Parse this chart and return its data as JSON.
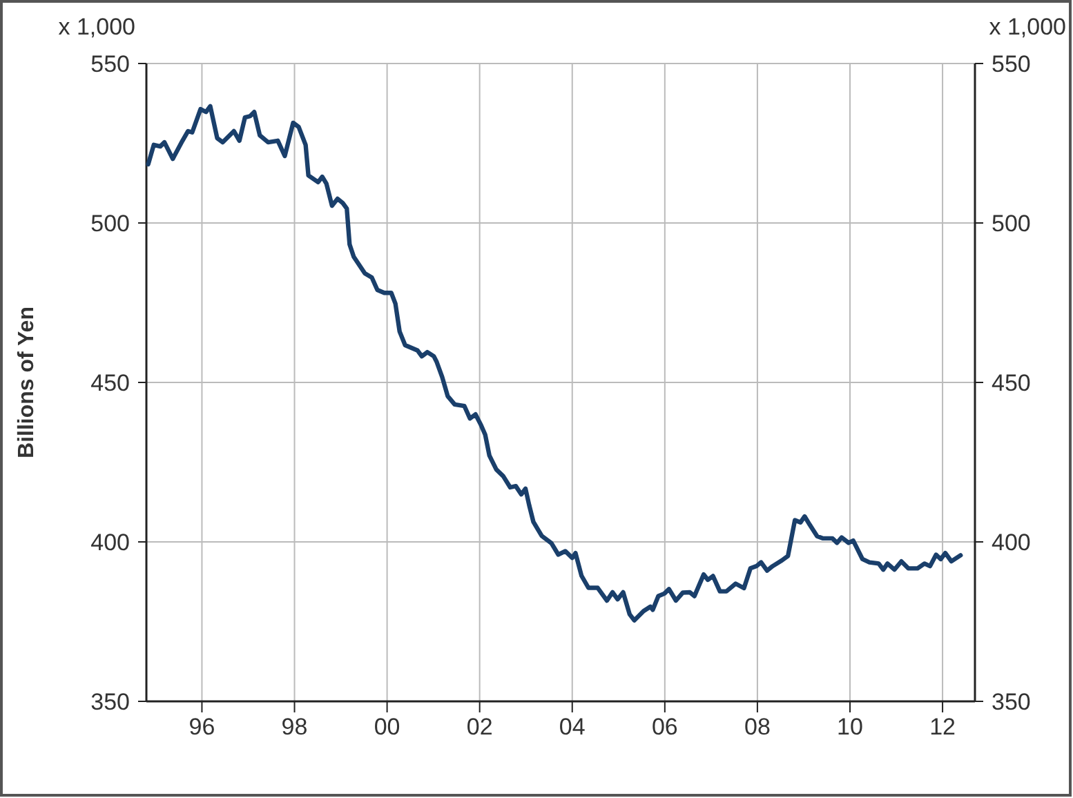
{
  "chart_data": {
    "type": "line",
    "ylabel": "Billions of Yen",
    "annotations": [
      "x 1,000",
      "x 1,000"
    ],
    "xlim": [
      1994.8,
      2012.7
    ],
    "xticks": [
      {
        "value": 1996,
        "label": "96"
      },
      {
        "value": 1998,
        "label": "98"
      },
      {
        "value": 2000,
        "label": "00"
      },
      {
        "value": 2002,
        "label": "02"
      },
      {
        "value": 2004,
        "label": "04"
      },
      {
        "value": 2006,
        "label": "06"
      },
      {
        "value": 2008,
        "label": "08"
      },
      {
        "value": 2010,
        "label": "10"
      },
      {
        "value": 2012,
        "label": "12"
      }
    ],
    "ylim": [
      350,
      550
    ],
    "yticks": [
      350,
      400,
      450,
      500,
      550
    ],
    "y2lim": [
      350,
      550
    ],
    "y2ticks": [
      350,
      400,
      450,
      500,
      550
    ],
    "grid": true,
    "marker": "none",
    "line_style": "solid",
    "series": [
      {
        "color": "#1a3f6b",
        "x": [
          1994.84,
          1994.96,
          1995.1,
          1995.19,
          1995.37,
          1995.58,
          1995.7,
          1995.79,
          1995.97,
          1996.09,
          1996.18,
          1996.33,
          1996.45,
          1996.69,
          1996.81,
          1996.93,
          1997.04,
          1997.13,
          1997.25,
          1997.43,
          1997.64,
          1997.79,
          1997.97,
          1998.09,
          1998.24,
          1998.3,
          1998.51,
          1998.6,
          1998.69,
          1998.81,
          1998.93,
          1999.04,
          1999.13,
          1999.19,
          1999.28,
          1999.52,
          1999.67,
          1999.79,
          1999.94,
          2000.09,
          2000.18,
          2000.27,
          2000.39,
          2000.66,
          2000.75,
          2000.87,
          2001.01,
          2001.07,
          2001.19,
          2001.31,
          2001.46,
          2001.67,
          2001.79,
          2001.91,
          2002.03,
          2002.12,
          2002.21,
          2002.36,
          2002.51,
          2002.66,
          2002.78,
          2002.9,
          2002.99,
          2003.07,
          2003.16,
          2003.34,
          2003.55,
          2003.7,
          2003.85,
          2004.0,
          2004.07,
          2004.2,
          2004.35,
          2004.55,
          2004.75,
          2004.87,
          2004.98,
          2005.1,
          2005.24,
          2005.34,
          2005.54,
          2005.69,
          2005.74,
          2005.86,
          2005.99,
          2006.09,
          2006.24,
          2006.39,
          2006.54,
          2006.64,
          2006.84,
          2006.93,
          2007.04,
          2007.19,
          2007.33,
          2007.53,
          2007.71,
          2007.85,
          2007.98,
          2008.08,
          2008.21,
          2008.33,
          2008.53,
          2008.66,
          2008.81,
          2008.93,
          2009.02,
          2009.13,
          2009.29,
          2009.42,
          2009.62,
          2009.72,
          2009.82,
          2009.97,
          2010.07,
          2010.27,
          2010.42,
          2010.62,
          2010.72,
          2010.81,
          2010.96,
          2011.11,
          2011.26,
          2011.46,
          2011.61,
          2011.73,
          2011.86,
          2011.96,
          2012.06,
          2012.19,
          2012.39
        ],
        "values": [
          518.4,
          524.5,
          524.0,
          525.3,
          520.1,
          525.8,
          528.8,
          528.4,
          535.7,
          534.8,
          536.6,
          526.6,
          525.3,
          528.8,
          525.8,
          533.1,
          533.5,
          534.8,
          527.5,
          525.3,
          525.8,
          521.0,
          531.4,
          530.1,
          524.5,
          514.9,
          512.8,
          514.5,
          512.3,
          505.4,
          507.6,
          506.3,
          504.5,
          493.3,
          489.4,
          484.2,
          482.9,
          479.0,
          478.1,
          478.1,
          474.7,
          466.0,
          461.7,
          460.0,
          458.2,
          459.5,
          458.2,
          456.5,
          451.7,
          445.7,
          443.1,
          442.6,
          438.7,
          440.0,
          436.6,
          433.6,
          427.1,
          422.7,
          420.6,
          417.1,
          417.5,
          414.9,
          416.7,
          411.5,
          406.3,
          401.9,
          399.6,
          396.0,
          397.1,
          395.0,
          396.5,
          389.4,
          385.6,
          385.6,
          381.6,
          384.2,
          382.0,
          384.2,
          377.3,
          375.4,
          378.3,
          379.7,
          378.7,
          383.0,
          383.8,
          385.2,
          381.6,
          384.1,
          384.2,
          383.0,
          389.8,
          388.1,
          389.3,
          384.5,
          384.5,
          386.9,
          385.5,
          391.7,
          392.4,
          393.6,
          391.0,
          392.4,
          394.2,
          395.6,
          406.8,
          406.1,
          408.0,
          405.4,
          401.8,
          401.1,
          401.1,
          399.7,
          401.4,
          399.7,
          400.4,
          394.6,
          393.6,
          393.2,
          391.3,
          393.2,
          391.3,
          393.9,
          391.7,
          391.7,
          393.2,
          392.4,
          396.0,
          394.6,
          396.5,
          393.9,
          395.8
        ]
      }
    ]
  }
}
